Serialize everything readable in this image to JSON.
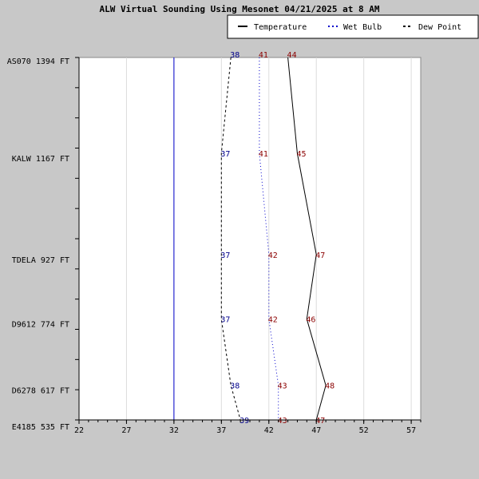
{
  "chart_data": {
    "type": "line",
    "title": "ALW Virtual Sounding Using Mesonet 04/21/2025 at 8 AM",
    "legend_position": "top-right",
    "xlim": [
      22,
      58
    ],
    "x_ticks": [
      22,
      27,
      32,
      37,
      42,
      47,
      52,
      57
    ],
    "freezing_line": 32,
    "levels": [
      {
        "label": "AS070 1394 FT",
        "height_ft": 1394
      },
      {
        "label": "KALW 1167 FT",
        "height_ft": 1167
      },
      {
        "label": "TDELA 927 FT",
        "height_ft": 927
      },
      {
        "label": "D9612 774 FT",
        "height_ft": 774
      },
      {
        "label": "D6278 617 FT",
        "height_ft": 617
      },
      {
        "label": "E4185 535 FT",
        "height_ft": 535
      }
    ],
    "series": [
      {
        "name": "Temperature",
        "style": "solid",
        "color": "#000000",
        "label_color": "#8b0000",
        "values": [
          44,
          45,
          47,
          46,
          48,
          47
        ]
      },
      {
        "name": "Wet Bulb",
        "style": "dotted",
        "color": "#0000cc",
        "label_color": "#8b0000",
        "values": [
          41,
          41,
          42,
          42,
          43,
          43
        ]
      },
      {
        "name": "Dew Point",
        "style": "dashed",
        "color": "#000000",
        "label_color": "#00008b",
        "values": [
          38,
          37,
          37,
          37,
          38,
          39
        ]
      }
    ]
  }
}
